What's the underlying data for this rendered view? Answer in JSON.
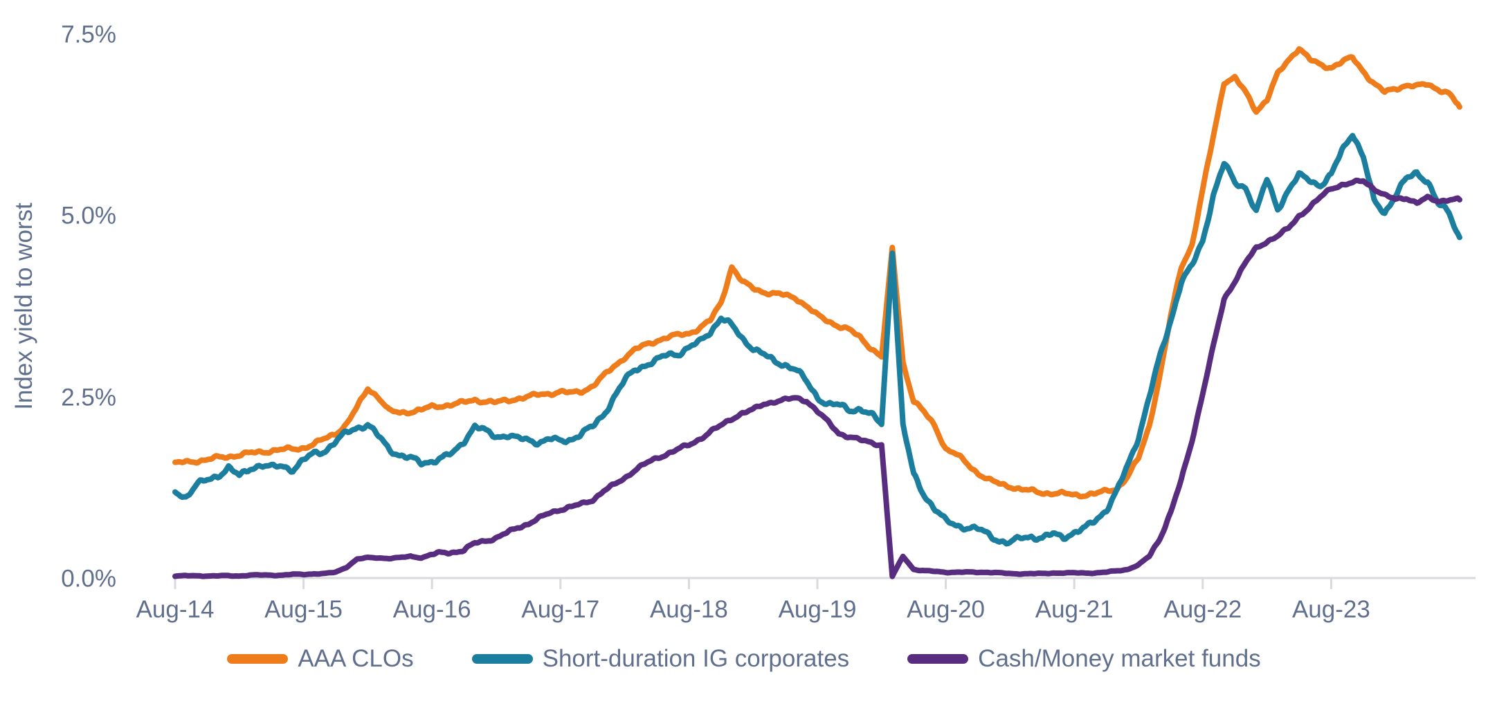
{
  "chart_data": {
    "type": "line",
    "title": "",
    "ylabel": "Index yield to worst",
    "y_tick_labels": [
      "7.5%",
      "5.0%",
      "2.5%",
      "0.0%"
    ],
    "y_tick_values": [
      7.5,
      5.0,
      2.5,
      0.0
    ],
    "ylim": [
      0.0,
      7.5
    ],
    "x_tick_labels": [
      "Aug-14",
      "Aug-15",
      "Aug-16",
      "Aug-17",
      "Aug-18",
      "Aug-19",
      "Aug-20",
      "Aug-21",
      "Aug-22",
      "Aug-23"
    ],
    "x_start": "Aug-2014",
    "x_end": "Aug-2024",
    "x_frequency": "monthly",
    "grid": false,
    "legend_position": "bottom",
    "axis_color": "#D9D9DE",
    "label_color": "#606F8D",
    "series": [
      {
        "name": "AAA CLOs",
        "color": "#EE7C1B",
        "values": [
          1.58,
          1.6,
          1.62,
          1.63,
          1.66,
          1.68,
          1.7,
          1.72,
          1.74,
          1.76,
          1.77,
          1.78,
          1.8,
          1.85,
          1.92,
          2.0,
          2.12,
          2.35,
          2.62,
          2.5,
          2.3,
          2.28,
          2.3,
          2.32,
          2.36,
          2.38,
          2.4,
          2.42,
          2.46,
          2.44,
          2.42,
          2.45,
          2.48,
          2.5,
          2.53,
          2.55,
          2.57,
          2.55,
          2.58,
          2.65,
          2.78,
          2.92,
          3.05,
          3.15,
          3.22,
          3.28,
          3.32,
          3.35,
          3.38,
          3.45,
          3.55,
          3.8,
          4.3,
          4.08,
          4.0,
          3.95,
          3.92,
          3.9,
          3.87,
          3.75,
          3.62,
          3.55,
          3.48,
          3.42,
          3.32,
          3.18,
          3.05,
          4.56,
          2.98,
          2.44,
          2.28,
          2.1,
          1.78,
          1.7,
          1.58,
          1.45,
          1.35,
          1.3,
          1.27,
          1.22,
          1.2,
          1.18,
          1.17,
          1.16,
          1.15,
          1.15,
          1.16,
          1.2,
          1.24,
          1.4,
          1.65,
          2.1,
          2.8,
          3.6,
          4.3,
          4.6,
          5.35,
          6.1,
          6.85,
          6.9,
          6.7,
          6.45,
          6.6,
          6.95,
          7.15,
          7.32,
          7.15,
          7.08,
          7.05,
          7.12,
          7.18,
          7.0,
          6.82,
          6.7,
          6.76,
          6.8,
          6.78,
          6.82,
          6.75,
          6.68,
          6.5
        ]
      },
      {
        "name": "Short-duration IG corporates",
        "color": "#1B7E9E",
        "values": [
          1.2,
          1.12,
          1.28,
          1.35,
          1.42,
          1.52,
          1.4,
          1.52,
          1.56,
          1.52,
          1.55,
          1.5,
          1.62,
          1.72,
          1.76,
          1.88,
          2.0,
          2.08,
          2.12,
          1.95,
          1.78,
          1.7,
          1.65,
          1.58,
          1.62,
          1.66,
          1.72,
          1.9,
          2.1,
          2.02,
          1.95,
          1.98,
          1.92,
          1.9,
          1.88,
          1.92,
          1.88,
          1.92,
          2.0,
          2.08,
          2.25,
          2.5,
          2.72,
          2.88,
          2.95,
          3.0,
          3.08,
          3.1,
          3.18,
          3.25,
          3.4,
          3.6,
          3.48,
          3.3,
          3.18,
          3.08,
          2.98,
          2.95,
          2.88,
          2.7,
          2.5,
          2.4,
          2.38,
          2.32,
          2.34,
          2.25,
          2.12,
          4.49,
          2.1,
          1.42,
          1.15,
          0.95,
          0.78,
          0.73,
          0.7,
          0.67,
          0.6,
          0.52,
          0.48,
          0.55,
          0.58,
          0.55,
          0.6,
          0.57,
          0.63,
          0.68,
          0.8,
          0.95,
          1.2,
          1.55,
          1.95,
          2.5,
          3.05,
          3.55,
          4.1,
          4.3,
          4.65,
          5.3,
          5.72,
          5.45,
          5.4,
          5.05,
          5.5,
          5.1,
          5.35,
          5.55,
          5.5,
          5.42,
          5.55,
          5.9,
          6.15,
          5.8,
          5.2,
          5.05,
          5.28,
          5.5,
          5.6,
          5.48,
          5.15,
          5.05,
          4.7
        ]
      },
      {
        "name": "Cash/Money market funds",
        "color": "#582C7E",
        "values": [
          0.03,
          0.03,
          0.03,
          0.03,
          0.03,
          0.03,
          0.03,
          0.04,
          0.04,
          0.04,
          0.04,
          0.05,
          0.05,
          0.06,
          0.06,
          0.08,
          0.15,
          0.26,
          0.28,
          0.28,
          0.27,
          0.28,
          0.3,
          0.28,
          0.32,
          0.35,
          0.36,
          0.38,
          0.48,
          0.52,
          0.55,
          0.62,
          0.7,
          0.75,
          0.82,
          0.9,
          0.95,
          0.98,
          1.02,
          1.08,
          1.2,
          1.28,
          1.38,
          1.5,
          1.58,
          1.65,
          1.72,
          1.78,
          1.83,
          1.92,
          2.02,
          2.1,
          2.2,
          2.28,
          2.32,
          2.4,
          2.44,
          2.46,
          2.48,
          2.45,
          2.3,
          2.15,
          2.0,
          1.95,
          1.9,
          1.87,
          1.84,
          0.02,
          0.3,
          0.12,
          0.1,
          0.09,
          0.08,
          0.08,
          0.08,
          0.08,
          0.08,
          0.07,
          0.06,
          0.06,
          0.06,
          0.06,
          0.07,
          0.07,
          0.07,
          0.07,
          0.07,
          0.08,
          0.1,
          0.12,
          0.18,
          0.3,
          0.55,
          0.9,
          1.35,
          1.9,
          2.55,
          3.2,
          3.85,
          4.1,
          4.35,
          4.55,
          4.65,
          4.72,
          4.82,
          5.0,
          5.12,
          5.25,
          5.38,
          5.43,
          5.45,
          5.48,
          5.38,
          5.28,
          5.22,
          5.25,
          5.18,
          5.24,
          5.2,
          5.23,
          5.22
        ]
      }
    ]
  }
}
